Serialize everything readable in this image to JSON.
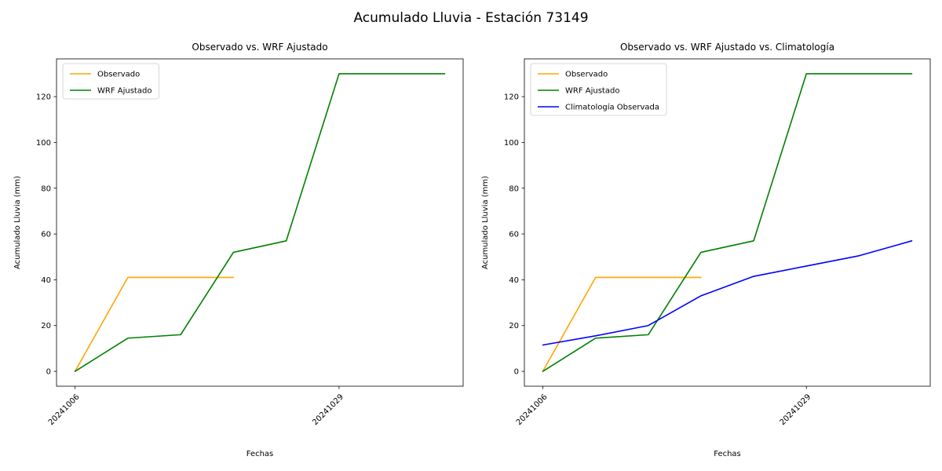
{
  "figure": {
    "title": "Acumulado Lluvia - Estación 73149",
    "background": "#ffffff"
  },
  "chart_data": [
    {
      "type": "line",
      "title": "Observado vs. WRF Ajustado",
      "xlabel": "Fechas",
      "ylabel": "Acumulado Lluvia (mm)",
      "xlim": [
        -0.35,
        7.35
      ],
      "ylim": [
        -6.5,
        136.5
      ],
      "grid": false,
      "legend_position": "upper left",
      "yticks": [
        0,
        20,
        40,
        60,
        80,
        100,
        120
      ],
      "xticks": [
        {
          "x": 0,
          "label": "20241006"
        },
        {
          "x": 5,
          "label": "20241029"
        }
      ],
      "series": [
        {
          "name": "Observado",
          "color": "#ffa500",
          "x": [
            0,
            1,
            2,
            3
          ],
          "y": [
            0,
            41,
            41,
            41
          ]
        },
        {
          "name": "WRF Ajustado",
          "color": "#008000",
          "x": [
            0,
            1,
            2,
            3,
            4,
            5,
            7
          ],
          "y": [
            0,
            14.5,
            16,
            52,
            57,
            130,
            130
          ]
        }
      ]
    },
    {
      "type": "line",
      "title": "Observado vs. WRF Ajustado vs. Climatología",
      "xlabel": "Fechas",
      "ylabel": "Acumulado Lluvia (mm)",
      "xlim": [
        -0.35,
        7.35
      ],
      "ylim": [
        -6.5,
        136.5
      ],
      "grid": false,
      "legend_position": "upper left",
      "yticks": [
        0,
        20,
        40,
        60,
        80,
        100,
        120
      ],
      "xticks": [
        {
          "x": 0,
          "label": "20241006"
        },
        {
          "x": 5,
          "label": "20241029"
        }
      ],
      "series": [
        {
          "name": "Observado",
          "color": "#ffa500",
          "x": [
            0,
            1,
            2,
            3
          ],
          "y": [
            0,
            41,
            41,
            41
          ]
        },
        {
          "name": "WRF Ajustado",
          "color": "#008000",
          "x": [
            0,
            1,
            2,
            3,
            4,
            5,
            7
          ],
          "y": [
            0,
            14.5,
            16,
            52,
            57,
            130,
            130
          ]
        },
        {
          "name": "Climatología Observada",
          "color": "#0000ff",
          "x": [
            0,
            1,
            2,
            3,
            4,
            5,
            6,
            7
          ],
          "y": [
            11.5,
            15.5,
            20,
            33,
            41.5,
            46,
            50.5,
            57
          ]
        }
      ]
    }
  ]
}
